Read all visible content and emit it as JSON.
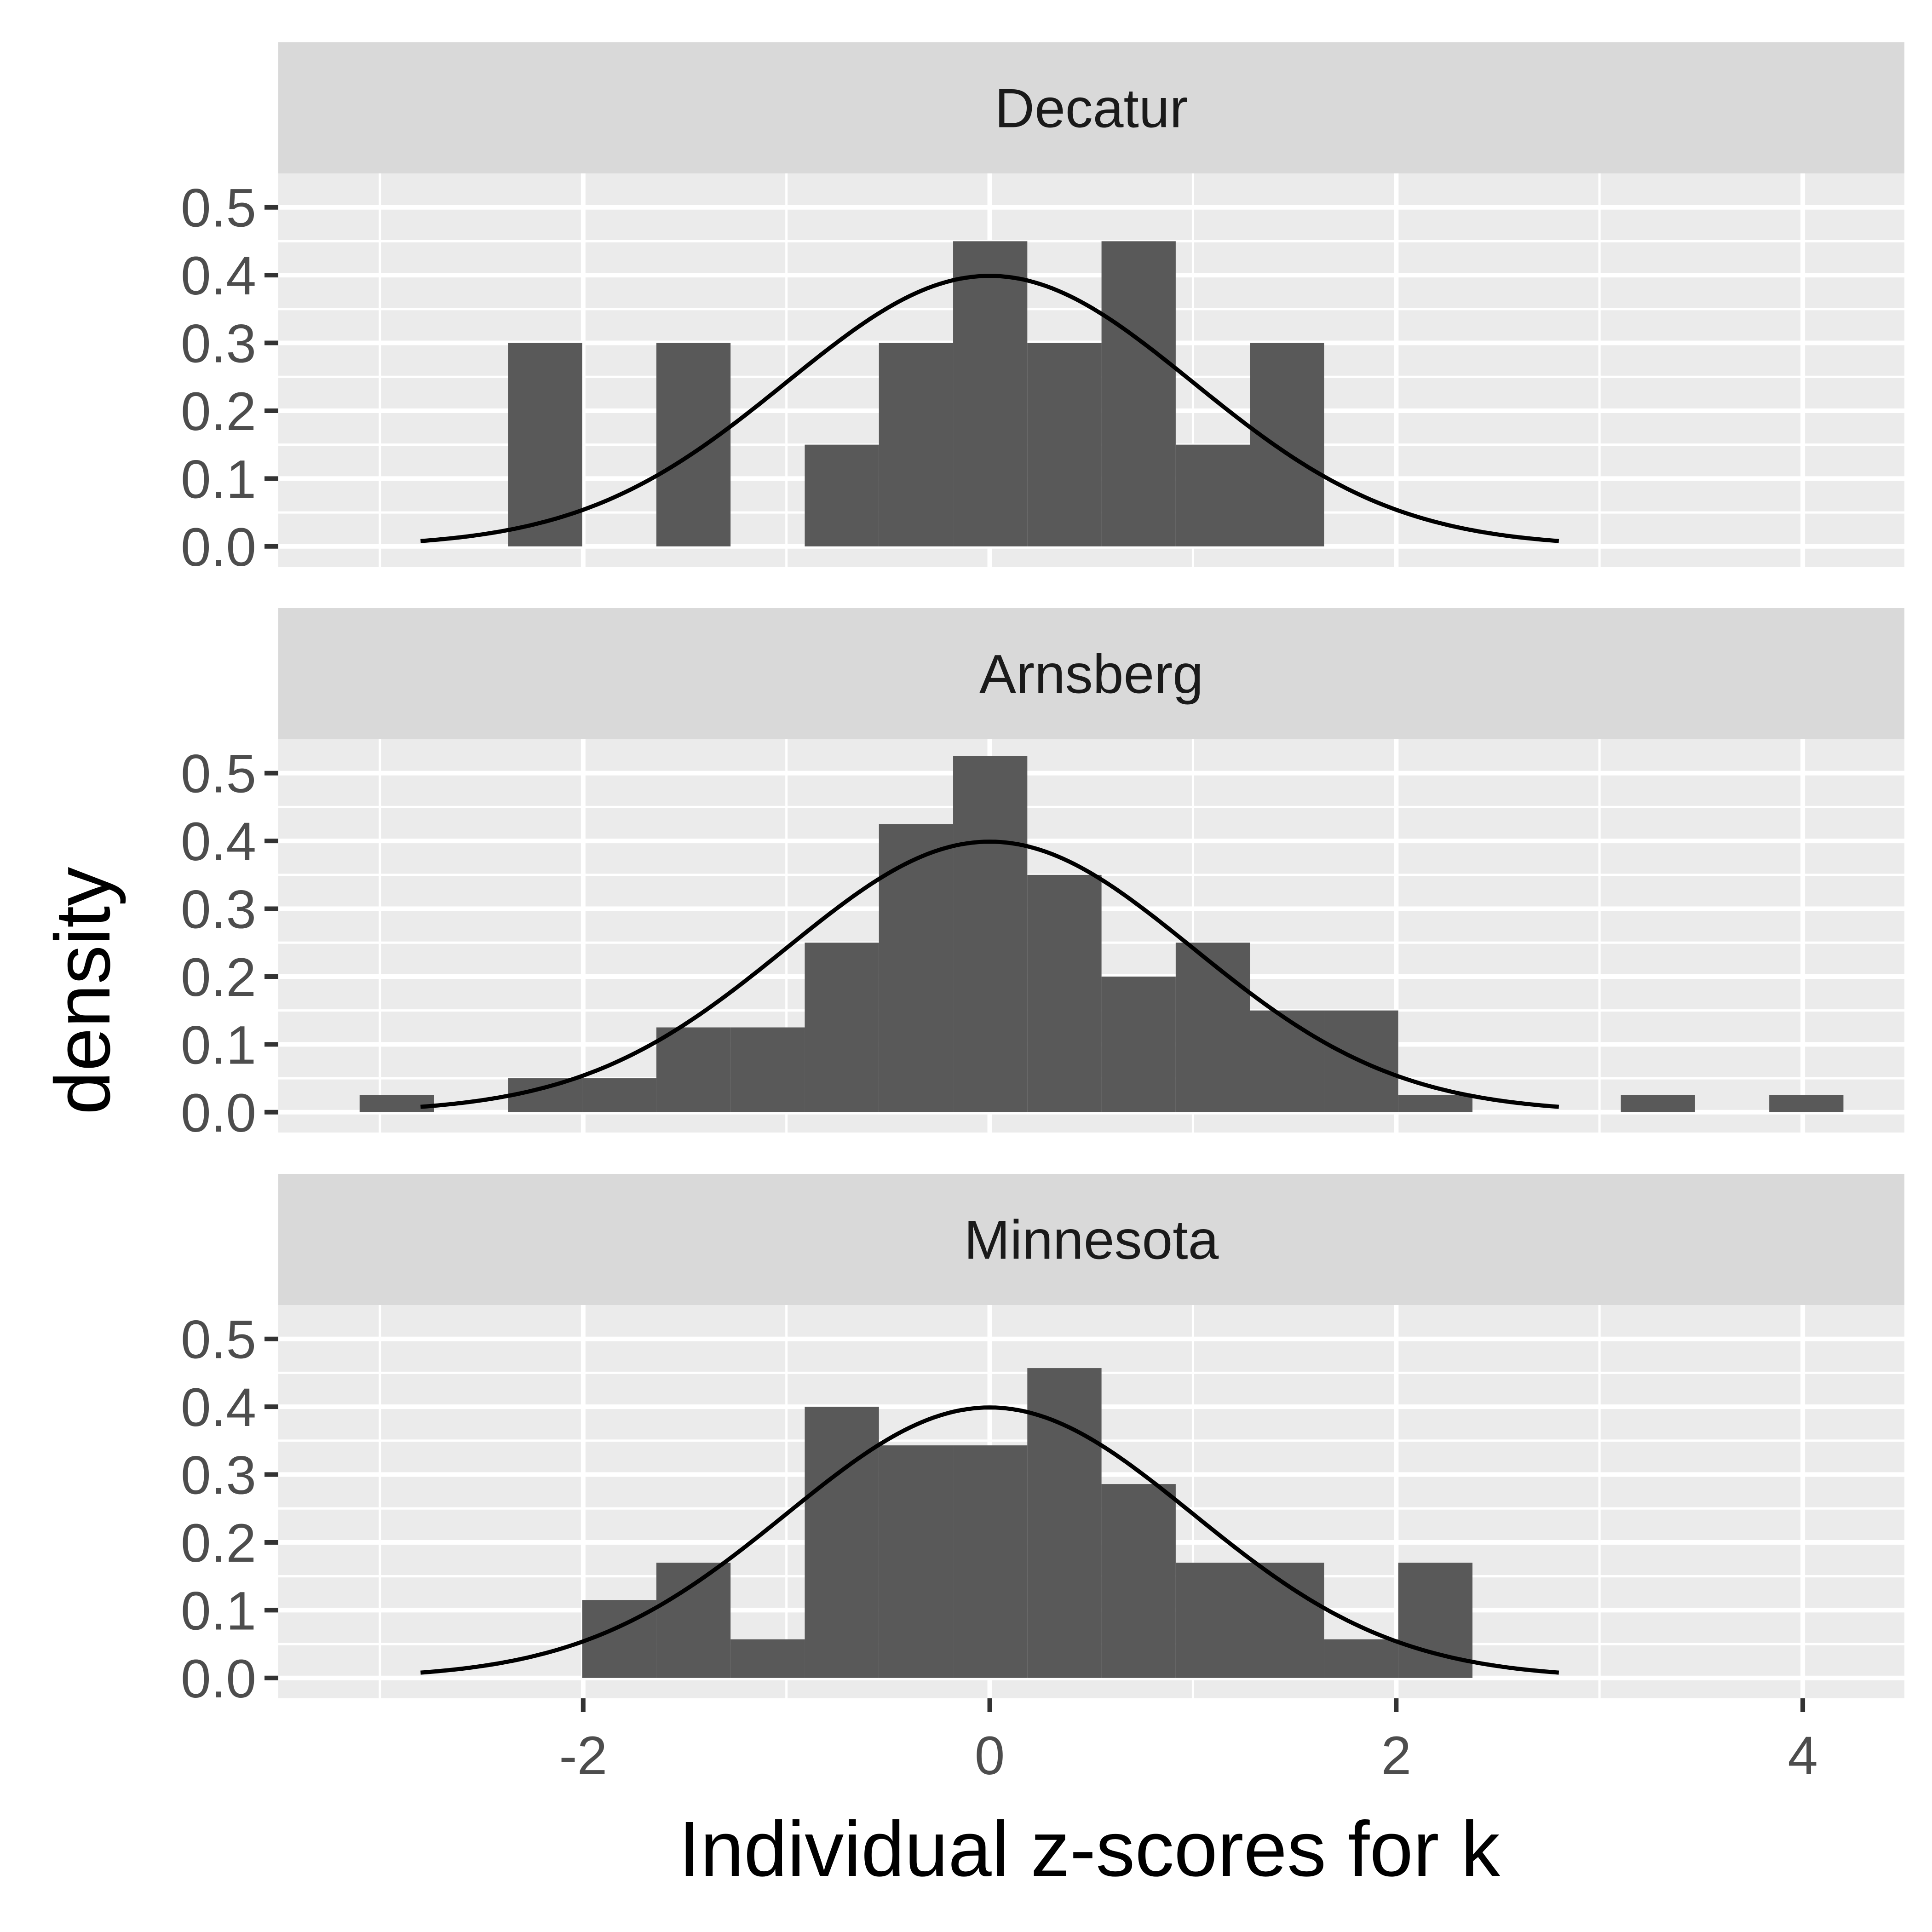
{
  "chart_data": {
    "type": "histogram",
    "xlabel": "Individual z-scores for k",
    "ylabel": "density",
    "xlim": [
      -3.5,
      4.5
    ],
    "ylim": [
      -0.03,
      0.55
    ],
    "x_ticks": [
      "-2",
      "0",
      "2",
      "4"
    ],
    "y_ticks": [
      "0.0",
      "0.1",
      "0.2",
      "0.3",
      "0.4",
      "0.5"
    ],
    "grid": true,
    "overlay": "standard normal density curve (mean 0, sd 1), x from -2.8 to 2.8",
    "colors": {
      "bars": "#595959",
      "panel_bg": "#ebebeb",
      "strip_bg": "#d9d9d9",
      "grid": "#ffffff",
      "curve": "#000000"
    },
    "bin_width": 0.365,
    "panels": [
      {
        "name": "Decatur",
        "bins": [
          {
            "x0": -2.37,
            "x1": -2.005,
            "density": 0.3
          },
          {
            "x0": -2.005,
            "x1": -1.64,
            "density": 0.0
          },
          {
            "x0": -1.64,
            "x1": -1.275,
            "density": 0.3
          },
          {
            "x0": -1.275,
            "x1": -0.91,
            "density": 0.0
          },
          {
            "x0": -0.91,
            "x1": -0.545,
            "density": 0.15
          },
          {
            "x0": -0.545,
            "x1": -0.18,
            "density": 0.3
          },
          {
            "x0": -0.18,
            "x1": 0.185,
            "density": 0.45
          },
          {
            "x0": 0.185,
            "x1": 0.55,
            "density": 0.3
          },
          {
            "x0": 0.55,
            "x1": 0.915,
            "density": 0.45
          },
          {
            "x0": 0.915,
            "x1": 1.28,
            "density": 0.15
          },
          {
            "x0": 1.28,
            "x1": 1.645,
            "density": 0.3
          }
        ]
      },
      {
        "name": "Arnsberg",
        "bins": [
          {
            "x0": -3.1,
            "x1": -2.735,
            "density": 0.025
          },
          {
            "x0": -2.735,
            "x1": -2.37,
            "density": 0.0
          },
          {
            "x0": -2.37,
            "x1": -2.005,
            "density": 0.05
          },
          {
            "x0": -2.005,
            "x1": -1.64,
            "density": 0.05
          },
          {
            "x0": -1.64,
            "x1": -1.275,
            "density": 0.125
          },
          {
            "x0": -1.275,
            "x1": -0.91,
            "density": 0.125
          },
          {
            "x0": -0.91,
            "x1": -0.545,
            "density": 0.25
          },
          {
            "x0": -0.545,
            "x1": -0.18,
            "density": 0.425
          },
          {
            "x0": -0.18,
            "x1": 0.185,
            "density": 0.525
          },
          {
            "x0": 0.185,
            "x1": 0.55,
            "density": 0.35
          },
          {
            "x0": 0.55,
            "x1": 0.915,
            "density": 0.2
          },
          {
            "x0": 0.915,
            "x1": 1.28,
            "density": 0.25
          },
          {
            "x0": 1.28,
            "x1": 1.645,
            "density": 0.15
          },
          {
            "x0": 1.645,
            "x1": 2.01,
            "density": 0.15
          },
          {
            "x0": 2.01,
            "x1": 2.375,
            "density": 0.025
          },
          {
            "x0": 3.105,
            "x1": 3.47,
            "density": 0.025
          },
          {
            "x0": 3.835,
            "x1": 4.2,
            "density": 0.025
          }
        ]
      },
      {
        "name": "Minnesota",
        "bins": [
          {
            "x0": -2.005,
            "x1": -1.64,
            "density": 0.115
          },
          {
            "x0": -1.64,
            "x1": -1.275,
            "density": 0.17
          },
          {
            "x0": -1.275,
            "x1": -0.91,
            "density": 0.057
          },
          {
            "x0": -0.91,
            "x1": -0.545,
            "density": 0.4
          },
          {
            "x0": -0.545,
            "x1": -0.18,
            "density": 0.343
          },
          {
            "x0": -0.18,
            "x1": 0.185,
            "density": 0.343
          },
          {
            "x0": 0.185,
            "x1": 0.55,
            "density": 0.457
          },
          {
            "x0": 0.55,
            "x1": 0.915,
            "density": 0.286
          },
          {
            "x0": 0.915,
            "x1": 1.28,
            "density": 0.17
          },
          {
            "x0": 1.28,
            "x1": 1.645,
            "density": 0.17
          },
          {
            "x0": 1.645,
            "x1": 2.01,
            "density": 0.057
          },
          {
            "x0": 2.01,
            "x1": 2.375,
            "density": 0.17
          }
        ]
      }
    ]
  }
}
